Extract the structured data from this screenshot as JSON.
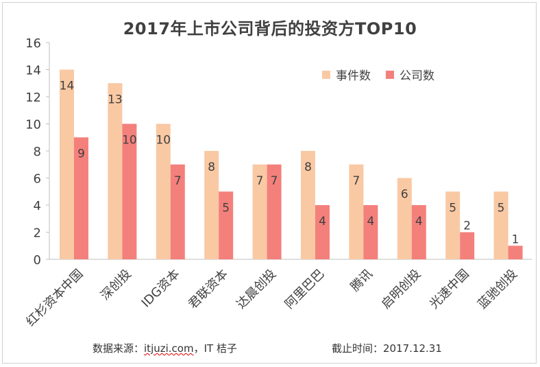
{
  "chart_data": {
    "type": "bar",
    "title": "2017年上市公司背后的投资方TOP10",
    "categories": [
      "红杉资本中国",
      "深创投",
      "IDG资本",
      "君联资本",
      "达晨创投",
      "阿里巴巴",
      "腾讯",
      "启明创投",
      "光速中国",
      "蓝驰创投"
    ],
    "series": [
      {
        "name": "事件数",
        "values": [
          14,
          13,
          10,
          8,
          7,
          8,
          7,
          6,
          5,
          5
        ],
        "color": "#f9c9a4"
      },
      {
        "name": "公司数",
        "values": [
          9,
          10,
          7,
          5,
          7,
          4,
          4,
          4,
          2,
          1
        ],
        "color": "#f4807c"
      }
    ],
    "ylim": [
      0,
      16
    ],
    "yticks": [
      0,
      2,
      4,
      6,
      8,
      10,
      12,
      14,
      16
    ],
    "grid": false,
    "legend_position": "top-right"
  },
  "footer": {
    "source_prefix": "数据来源：",
    "source_site": "itjuzi.com",
    "source_suffix": "，IT 桔子",
    "cutoff": "截止时间：2017.12.31"
  }
}
